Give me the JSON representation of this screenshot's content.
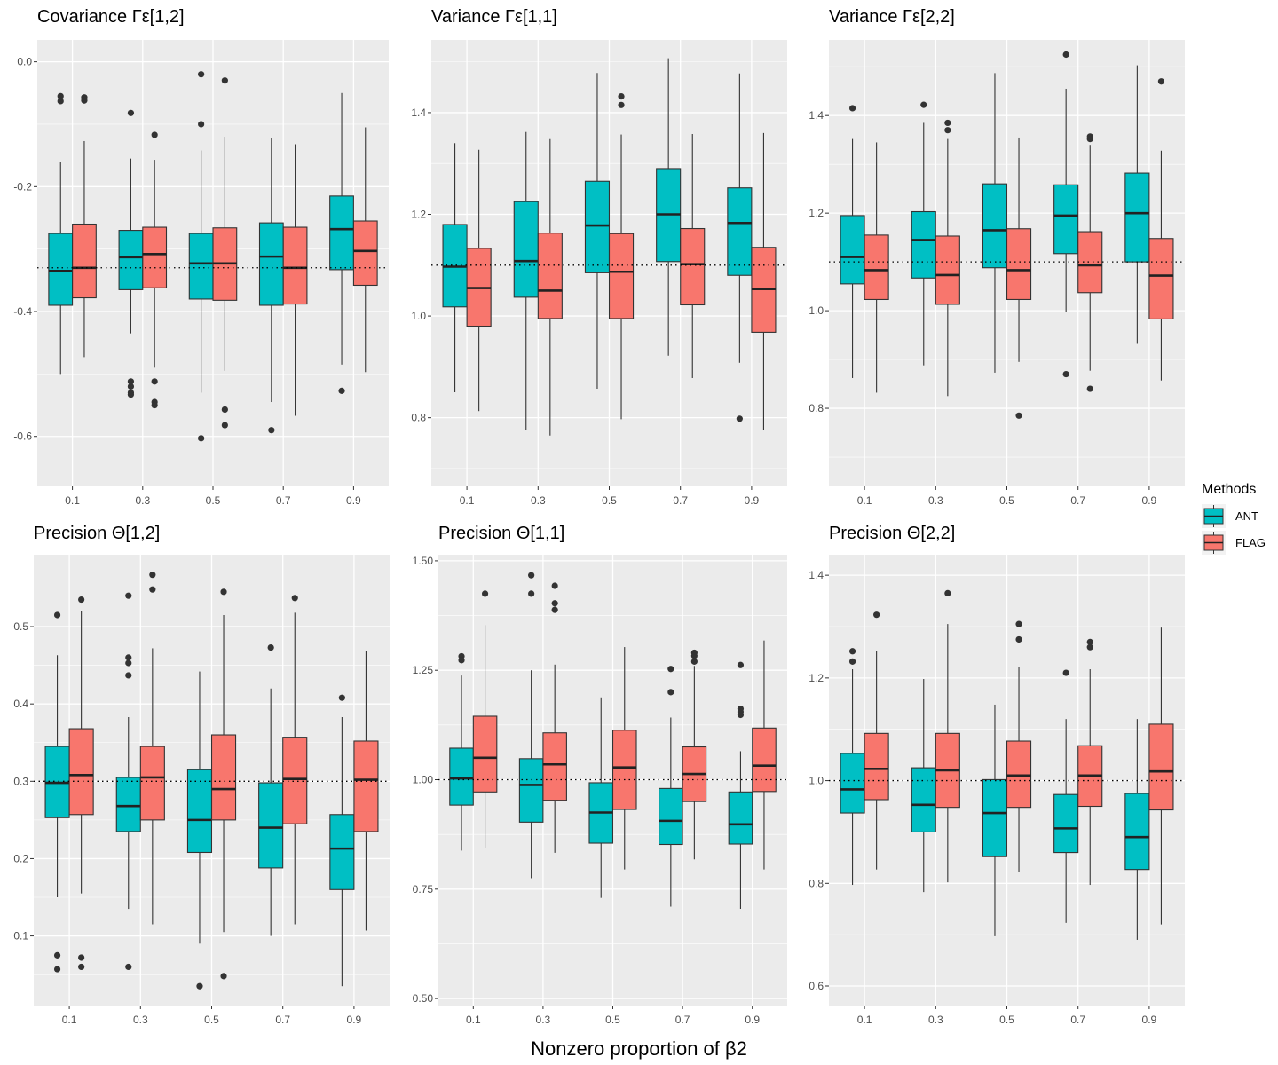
{
  "figure": {
    "xlabel": "Nonzero proportion of β2",
    "legend": {
      "title": "Methods",
      "position": "right",
      "entries": [
        {
          "name": "ANT",
          "color": "#00BFC4"
        },
        {
          "name": "FLAG",
          "color": "#F8766D"
        }
      ]
    }
  },
  "chart_data": [
    {
      "type": "boxplot",
      "title": "Covariance Γε[1,2]",
      "categories": [
        "0.1",
        "0.3",
        "0.5",
        "0.7",
        "0.9"
      ],
      "yticks": [
        "0.0",
        "-0.2",
        "-0.4",
        "-0.6"
      ],
      "ytick_values": [
        0.0,
        -0.2,
        -0.4,
        -0.6
      ],
      "ylim": [
        -0.68,
        0.035
      ],
      "reference_line": -0.33,
      "series": [
        {
          "name": "ANT",
          "boxes": [
            {
              "whisker_low": -0.5,
              "q1": -0.39,
              "median": -0.335,
              "q3": -0.275,
              "whisker_high": -0.16,
              "outliers": [
                -0.055,
                -0.063
              ]
            },
            {
              "whisker_low": -0.435,
              "q1": -0.365,
              "median": -0.313,
              "q3": -0.27,
              "whisker_high": -0.155,
              "outliers": [
                -0.082,
                -0.512,
                -0.52,
                -0.53,
                -0.533
              ]
            },
            {
              "whisker_low": -0.53,
              "q1": -0.38,
              "median": -0.323,
              "q3": -0.275,
              "whisker_high": -0.142,
              "outliers": [
                -0.02,
                -0.1,
                -0.603
              ]
            },
            {
              "whisker_low": -0.545,
              "q1": -0.39,
              "median": -0.312,
              "q3": -0.258,
              "whisker_high": -0.122,
              "outliers": [
                -0.59
              ]
            },
            {
              "whisker_low": -0.485,
              "q1": -0.333,
              "median": -0.268,
              "q3": -0.215,
              "whisker_high": -0.05,
              "outliers": [
                -0.527
              ]
            }
          ]
        },
        {
          "name": "FLAG",
          "boxes": [
            {
              "whisker_low": -0.473,
              "q1": -0.378,
              "median": -0.33,
              "q3": -0.26,
              "whisker_high": -0.127,
              "outliers": [
                -0.057,
                -0.062
              ]
            },
            {
              "whisker_low": -0.49,
              "q1": -0.362,
              "median": -0.308,
              "q3": -0.265,
              "whisker_high": -0.157,
              "outliers": [
                -0.117,
                -0.512,
                -0.545,
                -0.55
              ]
            },
            {
              "whisker_low": -0.495,
              "q1": -0.382,
              "median": -0.323,
              "q3": -0.266,
              "whisker_high": -0.12,
              "outliers": [
                -0.03,
                -0.557,
                -0.582
              ]
            },
            {
              "whisker_low": -0.567,
              "q1": -0.388,
              "median": -0.33,
              "q3": -0.265,
              "whisker_high": -0.132,
              "outliers": []
            },
            {
              "whisker_low": -0.497,
              "q1": -0.358,
              "median": -0.303,
              "q3": -0.255,
              "whisker_high": -0.105,
              "outliers": []
            }
          ]
        }
      ]
    },
    {
      "type": "boxplot",
      "title": "Variance Γε[1,1]",
      "categories": [
        "0.1",
        "0.3",
        "0.5",
        "0.7",
        "0.9"
      ],
      "yticks": [
        "1.4",
        "1.2",
        "1.0",
        "0.8"
      ],
      "ytick_values": [
        1.4,
        1.2,
        1.0,
        0.8
      ],
      "ylim": [
        0.665,
        1.543
      ],
      "reference_line": 1.1,
      "series": [
        {
          "name": "ANT",
          "boxes": [
            {
              "whisker_low": 0.85,
              "q1": 1.018,
              "median": 1.097,
              "q3": 1.18,
              "whisker_high": 1.34,
              "outliers": []
            },
            {
              "whisker_low": 0.775,
              "q1": 1.037,
              "median": 1.108,
              "q3": 1.225,
              "whisker_high": 1.362,
              "outliers": []
            },
            {
              "whisker_low": 0.857,
              "q1": 1.085,
              "median": 1.178,
              "q3": 1.265,
              "whisker_high": 1.478,
              "outliers": []
            },
            {
              "whisker_low": 0.922,
              "q1": 1.107,
              "median": 1.2,
              "q3": 1.29,
              "whisker_high": 1.507,
              "outliers": []
            },
            {
              "whisker_low": 0.908,
              "q1": 1.08,
              "median": 1.183,
              "q3": 1.252,
              "whisker_high": 1.477,
              "outliers": [
                0.798
              ]
            }
          ]
        },
        {
          "name": "FLAG",
          "boxes": [
            {
              "whisker_low": 0.813,
              "q1": 0.98,
              "median": 1.055,
              "q3": 1.133,
              "whisker_high": 1.327,
              "outliers": []
            },
            {
              "whisker_low": 0.765,
              "q1": 0.995,
              "median": 1.05,
              "q3": 1.163,
              "whisker_high": 1.348,
              "outliers": []
            },
            {
              "whisker_low": 0.797,
              "q1": 0.995,
              "median": 1.087,
              "q3": 1.162,
              "whisker_high": 1.357,
              "outliers": [
                1.415,
                1.432
              ]
            },
            {
              "whisker_low": 0.878,
              "q1": 1.022,
              "median": 1.102,
              "q3": 1.172,
              "whisker_high": 1.358,
              "outliers": []
            },
            {
              "whisker_low": 0.775,
              "q1": 0.968,
              "median": 1.053,
              "q3": 1.135,
              "whisker_high": 1.36,
              "outliers": []
            }
          ]
        }
      ]
    },
    {
      "type": "boxplot",
      "title": "Variance Γε[2,2]",
      "categories": [
        "0.1",
        "0.3",
        "0.5",
        "0.7",
        "0.9"
      ],
      "yticks": [
        "1.4",
        "1.2",
        "1.0",
        "0.8"
      ],
      "ytick_values": [
        1.4,
        1.2,
        1.0,
        0.8
      ],
      "ylim": [
        0.64,
        1.555
      ],
      "reference_line": 1.1,
      "series": [
        {
          "name": "ANT",
          "boxes": [
            {
              "whisker_low": 0.862,
              "q1": 1.055,
              "median": 1.11,
              "q3": 1.195,
              "whisker_high": 1.352,
              "outliers": [
                1.415
              ]
            },
            {
              "whisker_low": 0.888,
              "q1": 1.067,
              "median": 1.145,
              "q3": 1.203,
              "whisker_high": 1.385,
              "outliers": [
                1.422
              ]
            },
            {
              "whisker_low": 0.873,
              "q1": 1.088,
              "median": 1.165,
              "q3": 1.26,
              "whisker_high": 1.487,
              "outliers": []
            },
            {
              "whisker_low": 0.998,
              "q1": 1.117,
              "median": 1.195,
              "q3": 1.258,
              "whisker_high": 1.455,
              "outliers": [
                1.525,
                0.87
              ]
            },
            {
              "whisker_low": 0.932,
              "q1": 1.1,
              "median": 1.2,
              "q3": 1.282,
              "whisker_high": 1.503,
              "outliers": []
            }
          ]
        },
        {
          "name": "FLAG",
          "boxes": [
            {
              "whisker_low": 0.832,
              "q1": 1.023,
              "median": 1.083,
              "q3": 1.155,
              "whisker_high": 1.345,
              "outliers": []
            },
            {
              "whisker_low": 0.825,
              "q1": 1.013,
              "median": 1.073,
              "q3": 1.153,
              "whisker_high": 1.352,
              "outliers": [
                1.37,
                1.385
              ]
            },
            {
              "whisker_low": 0.895,
              "q1": 1.023,
              "median": 1.083,
              "q3": 1.168,
              "whisker_high": 1.355,
              "outliers": [
                0.785
              ]
            },
            {
              "whisker_low": 0.877,
              "q1": 1.037,
              "median": 1.093,
              "q3": 1.162,
              "whisker_high": 1.34,
              "outliers": [
                1.352,
                1.357,
                0.84
              ]
            },
            {
              "whisker_low": 0.857,
              "q1": 0.983,
              "median": 1.072,
              "q3": 1.148,
              "whisker_high": 1.328,
              "outliers": [
                1.47
              ]
            }
          ]
        }
      ]
    },
    {
      "type": "boxplot",
      "title": "Precision Θ[1,2]",
      "categories": [
        "0.1",
        "0.3",
        "0.5",
        "0.7",
        "0.9"
      ],
      "yticks": [
        "0.5",
        "0.4",
        "0.3",
        "0.2",
        "0.1"
      ],
      "ytick_values": [
        0.5,
        0.4,
        0.3,
        0.2,
        0.1
      ],
      "ylim": [
        0.01,
        0.593
      ],
      "reference_line": 0.3,
      "series": [
        {
          "name": "ANT",
          "boxes": [
            {
              "whisker_low": 0.15,
              "q1": 0.253,
              "median": 0.298,
              "q3": 0.345,
              "whisker_high": 0.463,
              "outliers": [
                0.515,
                0.075,
                0.057
              ]
            },
            {
              "whisker_low": 0.135,
              "q1": 0.235,
              "median": 0.268,
              "q3": 0.305,
              "whisker_high": 0.383,
              "outliers": [
                0.54,
                0.46,
                0.453,
                0.437,
                0.06
              ]
            },
            {
              "whisker_low": 0.09,
              "q1": 0.208,
              "median": 0.25,
              "q3": 0.315,
              "whisker_high": 0.442,
              "outliers": [
                0.035
              ]
            },
            {
              "whisker_low": 0.1,
              "q1": 0.188,
              "median": 0.24,
              "q3": 0.298,
              "whisker_high": 0.42,
              "outliers": [
                0.473
              ]
            },
            {
              "whisker_low": 0.035,
              "q1": 0.16,
              "median": 0.213,
              "q3": 0.257,
              "whisker_high": 0.383,
              "outliers": [
                0.408
              ]
            }
          ]
        },
        {
          "name": "FLAG",
          "boxes": [
            {
              "whisker_low": 0.155,
              "q1": 0.257,
              "median": 0.308,
              "q3": 0.368,
              "whisker_high": 0.52,
              "outliers": [
                0.535,
                0.072,
                0.06
              ]
            },
            {
              "whisker_low": 0.115,
              "q1": 0.25,
              "median": 0.305,
              "q3": 0.345,
              "whisker_high": 0.472,
              "outliers": [
                0.567,
                0.548
              ]
            },
            {
              "whisker_low": 0.105,
              "q1": 0.25,
              "median": 0.29,
              "q3": 0.36,
              "whisker_high": 0.515,
              "outliers": [
                0.545,
                0.048
              ]
            },
            {
              "whisker_low": 0.115,
              "q1": 0.245,
              "median": 0.303,
              "q3": 0.357,
              "whisker_high": 0.518,
              "outliers": [
                0.537
              ]
            },
            {
              "whisker_low": 0.107,
              "q1": 0.235,
              "median": 0.302,
              "q3": 0.352,
              "whisker_high": 0.468,
              "outliers": []
            }
          ]
        }
      ]
    },
    {
      "type": "boxplot",
      "title": "Precision Θ[1,1]",
      "categories": [
        "0.1",
        "0.3",
        "0.5",
        "0.7",
        "0.9"
      ],
      "yticks": [
        "1.50",
        "1.25",
        "1.00",
        "0.75",
        "0.50"
      ],
      "ytick_values": [
        1.5,
        1.25,
        1.0,
        0.75,
        0.5
      ],
      "ylim": [
        0.484,
        1.514
      ],
      "reference_line": 1.0,
      "series": [
        {
          "name": "ANT",
          "boxes": [
            {
              "whisker_low": 0.838,
              "q1": 0.942,
              "median": 1.003,
              "q3": 1.072,
              "whisker_high": 1.238,
              "outliers": [
                1.282,
                1.273
              ]
            },
            {
              "whisker_low": 0.775,
              "q1": 0.903,
              "median": 0.988,
              "q3": 1.048,
              "whisker_high": 1.25,
              "outliers": [
                1.467,
                1.425
              ]
            },
            {
              "whisker_low": 0.73,
              "q1": 0.855,
              "median": 0.925,
              "q3": 0.993,
              "whisker_high": 1.188,
              "outliers": []
            },
            {
              "whisker_low": 0.71,
              "q1": 0.852,
              "median": 0.906,
              "q3": 0.98,
              "whisker_high": 1.142,
              "outliers": [
                1.253,
                1.2
              ]
            },
            {
              "whisker_low": 0.705,
              "q1": 0.853,
              "median": 0.898,
              "q3": 0.972,
              "whisker_high": 1.065,
              "outliers": [
                1.262,
                1.162,
                1.155,
                1.148
              ]
            }
          ]
        },
        {
          "name": "FLAG",
          "boxes": [
            {
              "whisker_low": 0.845,
              "q1": 0.972,
              "median": 1.05,
              "q3": 1.145,
              "whisker_high": 1.353,
              "outliers": [
                1.425
              ]
            },
            {
              "whisker_low": 0.833,
              "q1": 0.953,
              "median": 1.035,
              "q3": 1.107,
              "whisker_high": 1.263,
              "outliers": [
                1.443,
                1.403,
                1.388
              ]
            },
            {
              "whisker_low": 0.795,
              "q1": 0.932,
              "median": 1.028,
              "q3": 1.113,
              "whisker_high": 1.303,
              "outliers": []
            },
            {
              "whisker_low": 0.818,
              "q1": 0.95,
              "median": 1.013,
              "q3": 1.075,
              "whisker_high": 1.26,
              "outliers": [
                1.29,
                1.283,
                1.27
              ]
            },
            {
              "whisker_low": 0.795,
              "q1": 0.973,
              "median": 1.032,
              "q3": 1.118,
              "whisker_high": 1.318,
              "outliers": []
            }
          ]
        }
      ]
    },
    {
      "type": "boxplot",
      "title": "Precision Θ[2,2]",
      "categories": [
        "0.1",
        "0.3",
        "0.5",
        "0.7",
        "0.9"
      ],
      "yticks": [
        "1.4",
        "1.2",
        "1.0",
        "0.8",
        "0.6"
      ],
      "ytick_values": [
        1.4,
        1.2,
        1.0,
        0.8,
        0.6
      ],
      "ylim": [
        0.562,
        1.44
      ],
      "reference_line": 1.0,
      "series": [
        {
          "name": "ANT",
          "boxes": [
            {
              "whisker_low": 0.797,
              "q1": 0.937,
              "median": 0.983,
              "q3": 1.053,
              "whisker_high": 1.217,
              "outliers": [
                1.252,
                1.232
              ]
            },
            {
              "whisker_low": 0.783,
              "q1": 0.9,
              "median": 0.953,
              "q3": 1.025,
              "whisker_high": 1.198,
              "outliers": []
            },
            {
              "whisker_low": 0.697,
              "q1": 0.852,
              "median": 0.937,
              "q3": 1.002,
              "whisker_high": 1.148,
              "outliers": []
            },
            {
              "whisker_low": 0.723,
              "q1": 0.86,
              "median": 0.907,
              "q3": 0.973,
              "whisker_high": 1.12,
              "outliers": [
                1.21
              ]
            },
            {
              "whisker_low": 0.69,
              "q1": 0.827,
              "median": 0.89,
              "q3": 0.975,
              "whisker_high": 1.12,
              "outliers": []
            }
          ]
        },
        {
          "name": "FLAG",
          "boxes": [
            {
              "whisker_low": 0.827,
              "q1": 0.963,
              "median": 1.023,
              "q3": 1.092,
              "whisker_high": 1.252,
              "outliers": [
                1.323
              ]
            },
            {
              "whisker_low": 0.802,
              "q1": 0.948,
              "median": 1.02,
              "q3": 1.092,
              "whisker_high": 1.305,
              "outliers": [
                1.365
              ]
            },
            {
              "whisker_low": 0.823,
              "q1": 0.948,
              "median": 1.01,
              "q3": 1.077,
              "whisker_high": 1.222,
              "outliers": [
                1.305,
                1.275
              ]
            },
            {
              "whisker_low": 0.797,
              "q1": 0.95,
              "median": 1.01,
              "q3": 1.068,
              "whisker_high": 1.217,
              "outliers": [
                1.27,
                1.26
              ]
            },
            {
              "whisker_low": 0.72,
              "q1": 0.943,
              "median": 1.018,
              "q3": 1.11,
              "whisker_high": 1.298,
              "outliers": []
            }
          ]
        }
      ]
    }
  ]
}
